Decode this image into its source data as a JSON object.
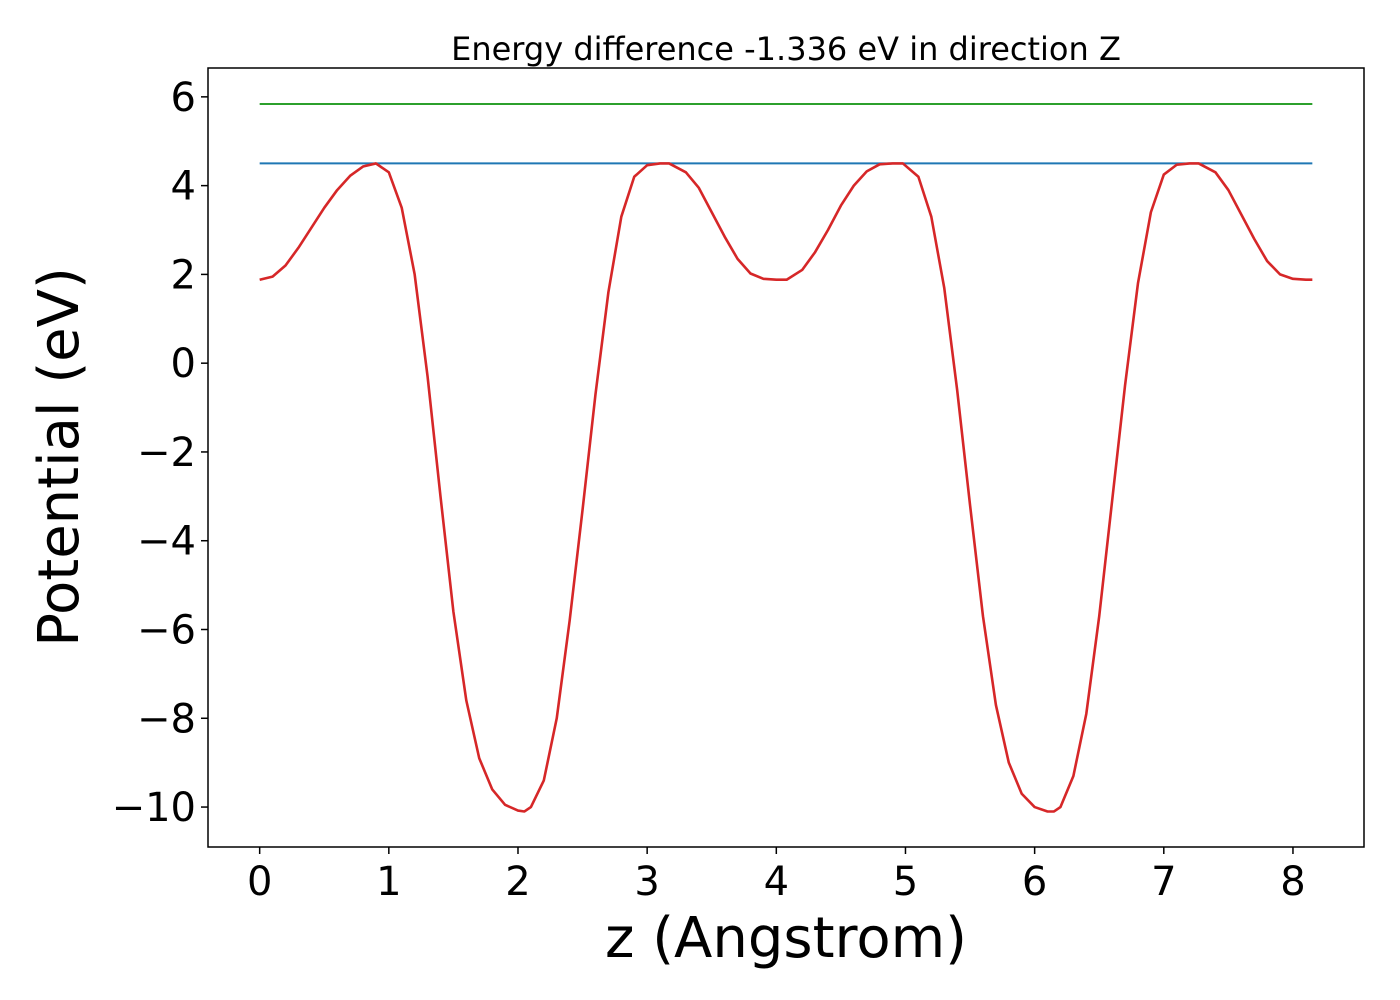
{
  "chart_data": {
    "type": "line",
    "title": "Energy difference -1.336 eV in direction Z",
    "xlabel": "z (Angstrom)",
    "ylabel": "Potential (eV)",
    "xlim": [
      -0.4,
      8.55
    ],
    "ylim": [
      -10.9,
      6.65
    ],
    "xticks": [
      0,
      1,
      2,
      3,
      4,
      5,
      6,
      7,
      8
    ],
    "yticks": [
      -10,
      -8,
      -6,
      -4,
      -2,
      0,
      2,
      4,
      6
    ],
    "ytick_labels": [
      "−10",
      "−8",
      "−6",
      "−4",
      "−2",
      "0",
      "2",
      "4",
      "6"
    ],
    "grid": false,
    "legend": false,
    "series": [
      {
        "color": "#2ca02c",
        "x": [
          0,
          8.15
        ],
        "y": [
          5.84,
          5.84
        ]
      },
      {
        "color": "#1f77b4",
        "x": [
          0,
          8.15
        ],
        "y": [
          4.5,
          4.5
        ]
      },
      {
        "color": "#d62728",
        "x": [
          0,
          0.1,
          0.2,
          0.3,
          0.4,
          0.5,
          0.6,
          0.7,
          0.8,
          0.9,
          1.0,
          1.1,
          1.2,
          1.3,
          1.4,
          1.5,
          1.6,
          1.7,
          1.8,
          1.9,
          2.0,
          2.05,
          2.1,
          2.2,
          2.3,
          2.4,
          2.5,
          2.6,
          2.7,
          2.8,
          2.9,
          3.0,
          3.1,
          3.17,
          3.3,
          3.4,
          3.5,
          3.6,
          3.7,
          3.8,
          3.9,
          4.0,
          4.08,
          4.2,
          4.3,
          4.4,
          4.5,
          4.6,
          4.7,
          4.8,
          4.9,
          4.98,
          5.1,
          5.2,
          5.3,
          5.4,
          5.5,
          5.6,
          5.7,
          5.8,
          5.9,
          6.0,
          6.1,
          6.15,
          6.2,
          6.3,
          6.4,
          6.5,
          6.6,
          6.7,
          6.8,
          6.9,
          7.0,
          7.1,
          7.2,
          7.27,
          7.4,
          7.5,
          7.6,
          7.7,
          7.8,
          7.9,
          8.0,
          8.1,
          8.15
        ],
        "y": [
          1.88,
          1.95,
          2.2,
          2.6,
          3.05,
          3.5,
          3.9,
          4.22,
          4.43,
          4.5,
          4.3,
          3.5,
          2.0,
          -0.3,
          -3.0,
          -5.6,
          -7.6,
          -8.9,
          -9.6,
          -9.95,
          -10.08,
          -10.1,
          -10.0,
          -9.4,
          -8.0,
          -5.8,
          -3.3,
          -0.7,
          1.6,
          3.3,
          4.2,
          4.46,
          4.5,
          4.5,
          4.3,
          3.95,
          3.4,
          2.85,
          2.35,
          2.02,
          1.9,
          1.88,
          1.88,
          2.1,
          2.5,
          3.0,
          3.55,
          4.0,
          4.32,
          4.48,
          4.5,
          4.5,
          4.2,
          3.3,
          1.7,
          -0.6,
          -3.2,
          -5.7,
          -7.7,
          -9.0,
          -9.7,
          -10.0,
          -10.1,
          -10.1,
          -10.0,
          -9.3,
          -7.9,
          -5.7,
          -3.1,
          -0.5,
          1.8,
          3.4,
          4.25,
          4.47,
          4.5,
          4.5,
          4.3,
          3.9,
          3.35,
          2.8,
          2.3,
          2.0,
          1.9,
          1.88,
          1.88
        ]
      }
    ]
  }
}
